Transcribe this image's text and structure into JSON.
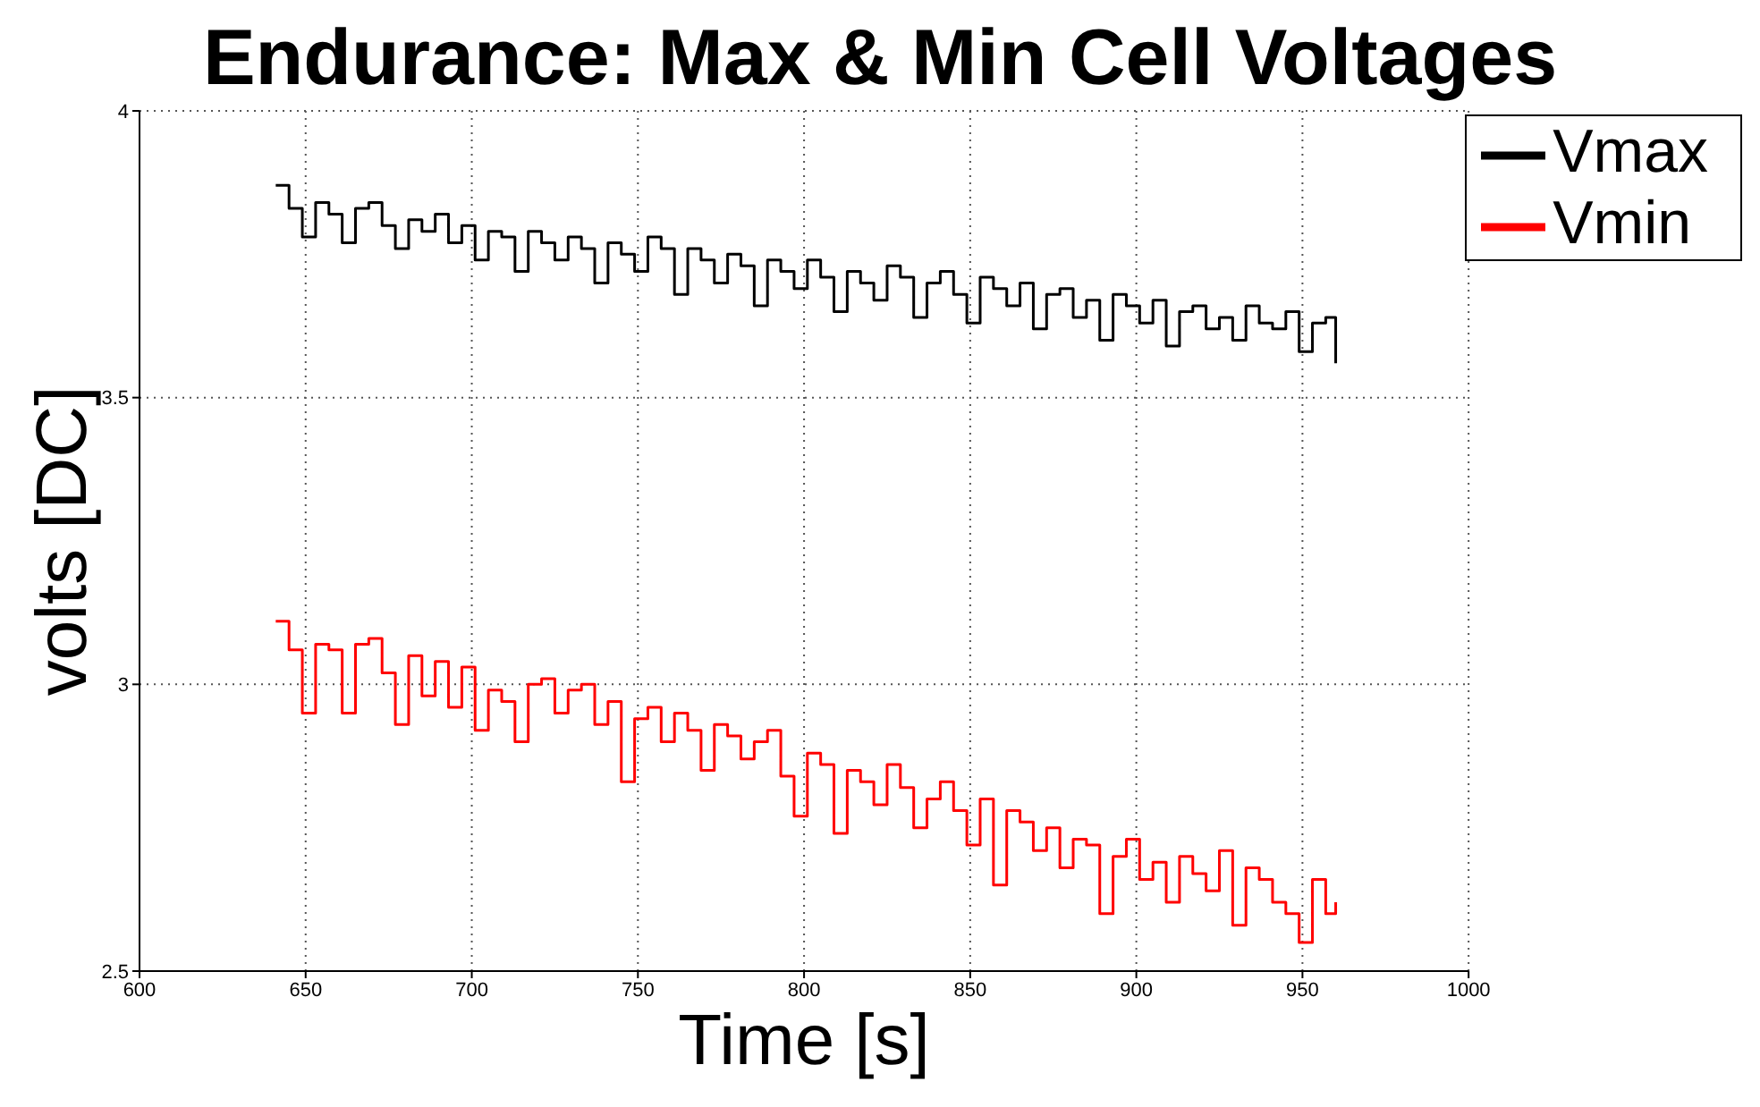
{
  "chart_data": {
    "type": "step",
    "title": "Endurance: Max & Min Cell Voltages",
    "xlabel": "Time [s]",
    "ylabel": "volts [DC]",
    "x": [
      641,
      645,
      649,
      653,
      657,
      661,
      665,
      669,
      673,
      677,
      681,
      685,
      689,
      693,
      697,
      701,
      705,
      709,
      713,
      717,
      721,
      725,
      729,
      733,
      737,
      741,
      745,
      749,
      753,
      757,
      761,
      765,
      769,
      773,
      777,
      781,
      785,
      789,
      793,
      797,
      801,
      805,
      809,
      813,
      817,
      821,
      825,
      829,
      833,
      837,
      841,
      845,
      849,
      853,
      857,
      861,
      865,
      869,
      873,
      877,
      881,
      885,
      889,
      893,
      897,
      901,
      905,
      909,
      913,
      917,
      921,
      925,
      929,
      933,
      937,
      941,
      945,
      949,
      953,
      957,
      960
    ],
    "series": [
      {
        "name": "Vmax",
        "color": "#000000",
        "values": [
          3.87,
          3.83,
          3.78,
          3.84,
          3.82,
          3.77,
          3.83,
          3.84,
          3.8,
          3.76,
          3.81,
          3.79,
          3.82,
          3.77,
          3.8,
          3.74,
          3.79,
          3.78,
          3.72,
          3.79,
          3.77,
          3.74,
          3.78,
          3.76,
          3.7,
          3.77,
          3.75,
          3.72,
          3.78,
          3.76,
          3.68,
          3.76,
          3.74,
          3.7,
          3.75,
          3.73,
          3.66,
          3.74,
          3.72,
          3.69,
          3.74,
          3.71,
          3.65,
          3.72,
          3.7,
          3.67,
          3.73,
          3.71,
          3.64,
          3.7,
          3.72,
          3.68,
          3.63,
          3.71,
          3.69,
          3.66,
          3.7,
          3.62,
          3.68,
          3.69,
          3.64,
          3.67,
          3.6,
          3.68,
          3.66,
          3.63,
          3.67,
          3.59,
          3.65,
          3.66,
          3.62,
          3.64,
          3.6,
          3.66,
          3.63,
          3.62,
          3.65,
          3.58,
          3.63,
          3.64,
          3.56
        ]
      },
      {
        "name": "Vmin",
        "color": "#ff0000",
        "values": [
          3.11,
          3.06,
          2.95,
          3.07,
          3.06,
          2.95,
          3.07,
          3.08,
          3.02,
          2.93,
          3.05,
          2.98,
          3.04,
          2.96,
          3.03,
          2.92,
          2.99,
          2.97,
          2.9,
          3.0,
          3.01,
          2.95,
          2.99,
          3.0,
          2.93,
          2.97,
          2.83,
          2.94,
          2.96,
          2.9,
          2.95,
          2.92,
          2.85,
          2.93,
          2.91,
          2.87,
          2.9,
          2.92,
          2.84,
          2.77,
          2.88,
          2.86,
          2.74,
          2.85,
          2.83,
          2.79,
          2.86,
          2.82,
          2.75,
          2.8,
          2.83,
          2.78,
          2.72,
          2.8,
          2.65,
          2.78,
          2.76,
          2.71,
          2.75,
          2.68,
          2.73,
          2.72,
          2.6,
          2.7,
          2.73,
          2.66,
          2.69,
          2.62,
          2.7,
          2.67,
          2.64,
          2.71,
          2.58,
          2.68,
          2.66,
          2.62,
          2.6,
          2.55,
          2.66,
          2.6,
          2.62
        ]
      }
    ],
    "xlim": [
      600,
      1000
    ],
    "xticks": [
      600,
      650,
      700,
      750,
      800,
      850,
      900,
      950,
      1000
    ],
    "ylim": [
      2.5,
      4
    ],
    "yticks": [
      2.5,
      3,
      3.5,
      4
    ],
    "grid": true,
    "legend": "top right",
    "line_style": "solid",
    "marker": "none"
  }
}
